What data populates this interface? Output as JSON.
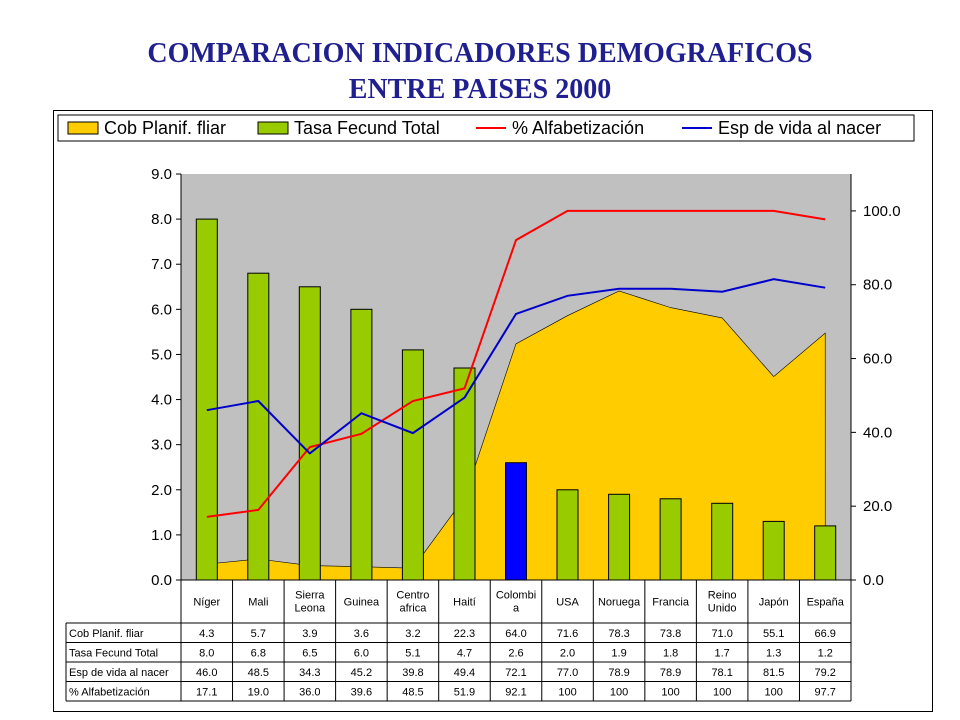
{
  "title_line1": "COMPARACION INDICADORES DEMOGRAFICOS",
  "title_line2": "ENTRE PAISES 2000",
  "colors": {
    "area": "#ffcc00",
    "bar": "#99cc00",
    "bar_highlight": "#0000ff",
    "literacy_line": "#ff0000",
    "life_line": "#0000cc",
    "plot_bg": "#c0c0c0",
    "title": "#1f1f8f"
  },
  "chart_data": {
    "type": "bar",
    "categories": [
      "Níger",
      "Mali",
      "Sierra Leona",
      "Guinea",
      "Centro africa",
      "Haití",
      "Colombia",
      "USA",
      "Noruega",
      "Francia",
      "Reino Unido",
      "Japón",
      "España"
    ],
    "category_labels": [
      [
        "Níger"
      ],
      [
        "Mali"
      ],
      [
        "Sierra",
        "Leona"
      ],
      [
        "Guinea"
      ],
      [
        "Centro",
        "africa"
      ],
      [
        "Haití"
      ],
      [
        "Colombi",
        "a"
      ],
      [
        "USA"
      ],
      [
        "Noruega"
      ],
      [
        "Francia"
      ],
      [
        "Reino",
        "Unido"
      ],
      [
        "Japón"
      ],
      [
        "España"
      ]
    ],
    "highlight_category": "Colombia",
    "series": [
      {
        "name": "Cob Planif. fliar",
        "table_label": "Cob Planif. fliar",
        "type": "area",
        "axis": "right",
        "values": [
          4.3,
          5.7,
          3.9,
          3.6,
          3.2,
          22.3,
          64.0,
          71.6,
          78.3,
          73.8,
          71.0,
          55.1,
          66.9
        ],
        "display": [
          "4.3",
          "5.7",
          "3.9",
          "3.6",
          "3.2",
          "22.3",
          "64.0",
          "71.6",
          "78.3",
          "73.8",
          "71.0",
          "55.1",
          "66.9"
        ]
      },
      {
        "name": "Tasa Fecund Total",
        "table_label": "Tasa Fecund Total",
        "type": "bar",
        "axis": "left",
        "values": [
          8.0,
          6.8,
          6.5,
          6.0,
          5.1,
          4.7,
          2.6,
          2.0,
          1.9,
          1.8,
          1.7,
          1.3,
          1.2
        ],
        "display": [
          "8.0",
          "6.8",
          "6.5",
          "6.0",
          "5.1",
          "4.7",
          "2.6",
          "2.0",
          "1.9",
          "1.8",
          "1.7",
          "1.3",
          "1.2"
        ]
      },
      {
        "name": "Esp de vida al nacer",
        "table_label": "Esp de vida al nacer",
        "type": "line",
        "axis": "right",
        "values": [
          46.0,
          48.5,
          34.3,
          45.2,
          39.8,
          49.4,
          72.1,
          77.0,
          78.9,
          78.9,
          78.1,
          81.5,
          79.2
        ],
        "display": [
          "46.0",
          "48.5",
          "34.3",
          "45.2",
          "39.8",
          "49.4",
          "72.1",
          "77.0",
          "78.9",
          "78.9",
          "78.1",
          "81.5",
          "79.2"
        ]
      },
      {
        "name": "% Alfabetización",
        "table_label": "% Alfabetización",
        "type": "line",
        "axis": "right",
        "values": [
          17.1,
          19.0,
          36.0,
          39.6,
          48.5,
          51.9,
          92.1,
          100,
          100,
          100,
          100,
          100,
          97.7
        ],
        "display": [
          "17.1",
          "19.0",
          "36.0",
          "39.6",
          "48.5",
          "51.9",
          "92.1",
          "100",
          "100",
          "100",
          "100",
          "100",
          "97.7"
        ]
      }
    ],
    "legend_order": [
      "Cob Planif. fliar",
      "Tasa Fecund Total",
      "% Alfabetización",
      "Esp de vida al nacer"
    ],
    "y_left": {
      "min": 0,
      "max": 9,
      "ticks": [
        "0.0",
        "1.0",
        "2.0",
        "3.0",
        "4.0",
        "5.0",
        "6.0",
        "7.0",
        "8.0",
        "9.0"
      ]
    },
    "y_right": {
      "min": 0,
      "max": 110,
      "ticks": [
        "0.0",
        "20.0",
        "40.0",
        "60.0",
        "80.0",
        "100.0"
      ]
    },
    "legend_position": "top",
    "grid": false
  }
}
